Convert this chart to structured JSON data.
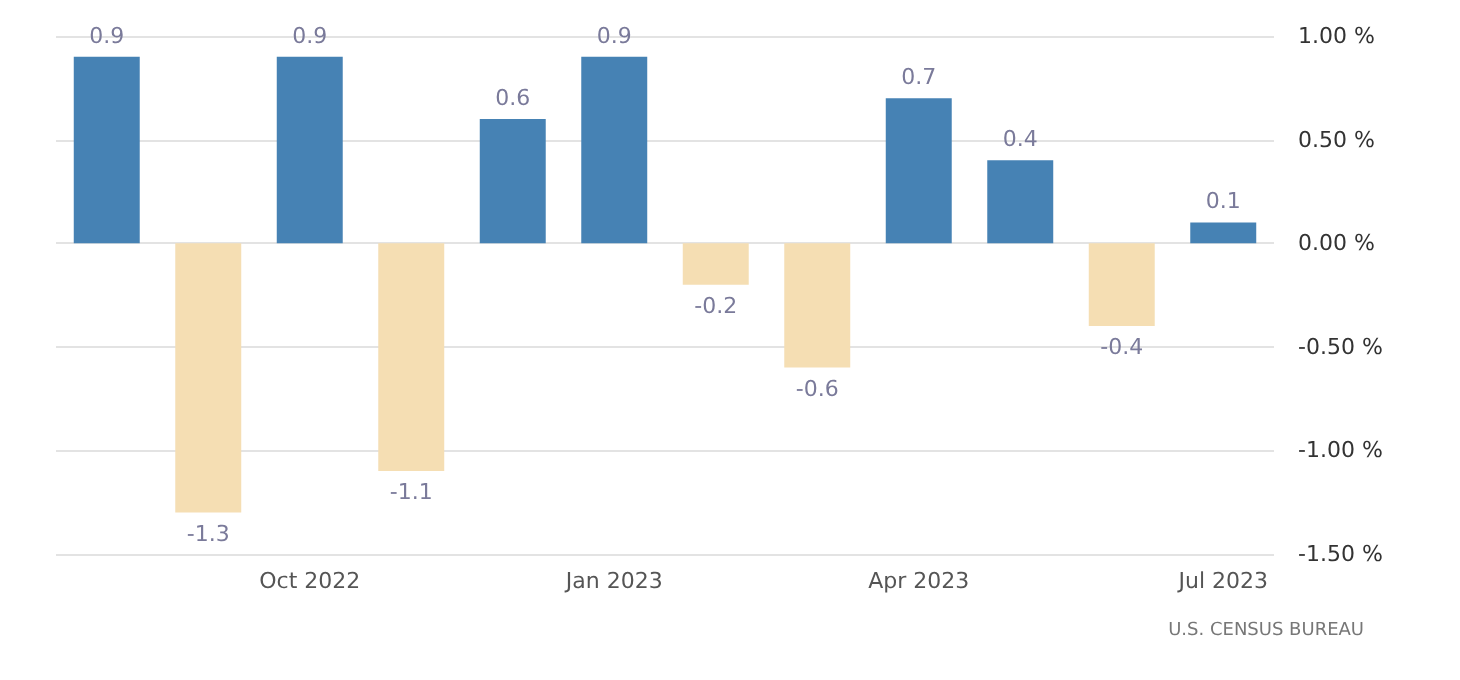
{
  "chart_data": {
    "type": "bar",
    "categories": [
      null,
      null,
      "Oct 2022",
      null,
      null,
      "Jan 2023",
      null,
      null,
      "Apr 2023",
      null,
      null,
      "Jul 2023"
    ],
    "values": [
      0.9,
      -1.3,
      0.9,
      -1.1,
      0.6,
      0.9,
      -0.2,
      -0.6,
      0.7,
      0.4,
      -0.4,
      0.1
    ],
    "colors": [
      "#4682b4",
      "#f5deb3",
      "#4682b4",
      "#f5deb3",
      "#4682b4",
      "#4682b4",
      "#f5deb3",
      "#f5deb3",
      "#4682b4",
      "#4682b4",
      "#f5deb3",
      "#4682b4"
    ],
    "ylim": [
      -1.5,
      1.0
    ],
    "yticks": [
      {
        "value": -1.5,
        "label": "-1.50 %"
      },
      {
        "value": -1.0,
        "label": "-1.00 %"
      },
      {
        "value": -0.5,
        "label": "-0.50 %"
      },
      {
        "value": 0,
        "label": "0.00 %"
      },
      {
        "value": 0.5,
        "label": "0.50 %"
      },
      {
        "value": 1.0,
        "label": "1.00 %"
      }
    ],
    "grid": "y",
    "data_labels": true,
    "annotations": [
      "U.S. CENSUS BUREAU"
    ]
  }
}
